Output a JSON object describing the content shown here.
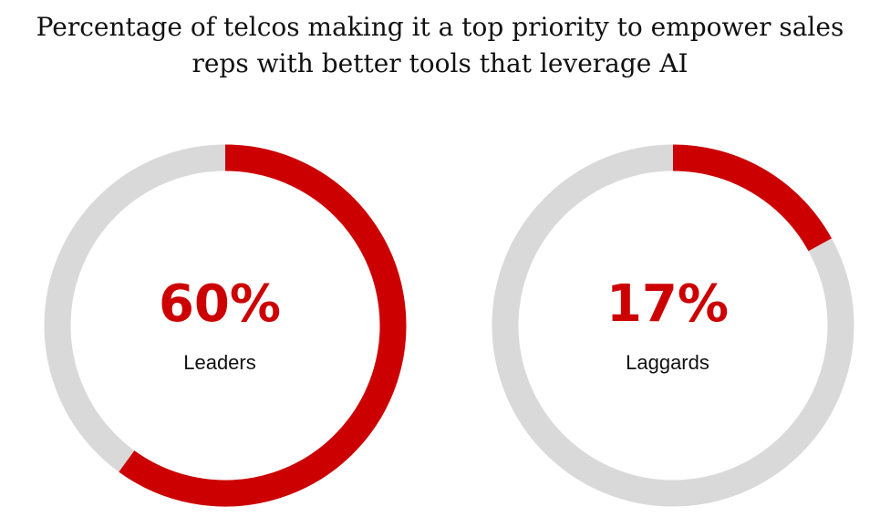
{
  "title": {
    "line1": "Percentage of telcos making it a top priority to empower sales",
    "line2": "reps with better tools that leverage AI"
  },
  "colors": {
    "accent": "#cc0000",
    "track": "#d9d9d9",
    "text": "#111111"
  },
  "chart_data": [
    {
      "type": "pie",
      "variant": "donut-gauge",
      "value": 60,
      "value_label": "60%",
      "label": "Leaders"
    },
    {
      "type": "pie",
      "variant": "donut-gauge",
      "value": 17,
      "value_label": "17%",
      "label": "Laggards"
    }
  ]
}
